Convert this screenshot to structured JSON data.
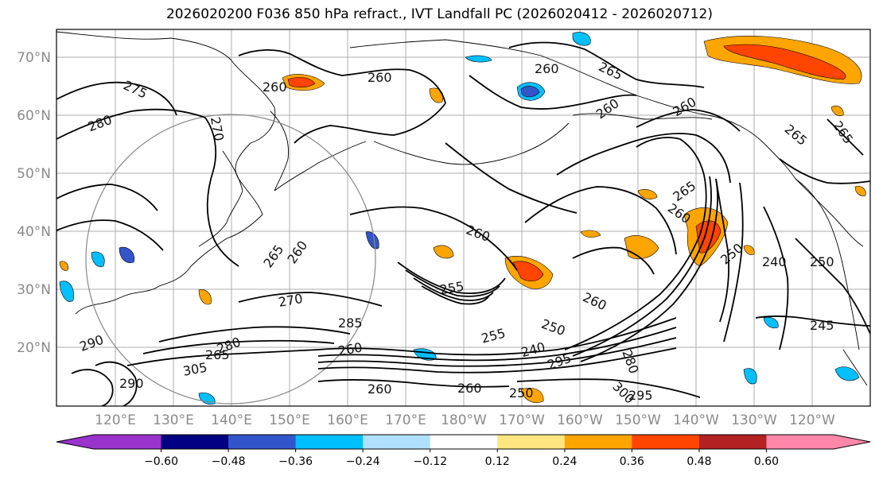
{
  "title": "2026020200 F036 850 hPa refract., IVT Landfall PC (2026020412 - 2026020712)",
  "latitude_labels": [
    "70°N",
    "60°N",
    "50°N",
    "40°N",
    "30°N",
    "20°N"
  ],
  "longitude_labels": [
    "120°E",
    "130°E",
    "140°E",
    "150°E",
    "160°E",
    "170°E",
    "180°W",
    "170°W",
    "160°W",
    "150°W",
    "140°W",
    "130°W",
    "120°W"
  ],
  "colorbar": {
    "ticks": [
      "−0.60",
      "−0.48",
      "−0.36",
      "−0.24",
      "−0.12",
      "0.12",
      "0.24",
      "0.36",
      "0.48",
      "0.60"
    ],
    "colors": [
      "#9933cc",
      "#000080",
      "#3355cc",
      "#00bfff",
      "#b0e0ff",
      "#ffffff",
      "#ffe680",
      "#ffa500",
      "#ff4500",
      "#b22222",
      "#ff88aa"
    ]
  },
  "contour_labels": [
    "275",
    "280",
    "260",
    "260",
    "260",
    "265",
    "260",
    "260",
    "265",
    "270",
    "265",
    "265",
    "260",
    "260",
    "265",
    "260",
    "260",
    "250",
    "240",
    "250",
    "245",
    "270",
    "285",
    "290",
    "280",
    "255",
    "250",
    "240",
    "265",
    "295",
    "260",
    "260",
    "250",
    "260",
    "295",
    "305",
    "290",
    "300",
    "280",
    "255"
  ],
  "colors": {
    "contour": "#000000",
    "grid": "#9a9a9a",
    "coast": "#000000",
    "circle": "#888888"
  }
}
